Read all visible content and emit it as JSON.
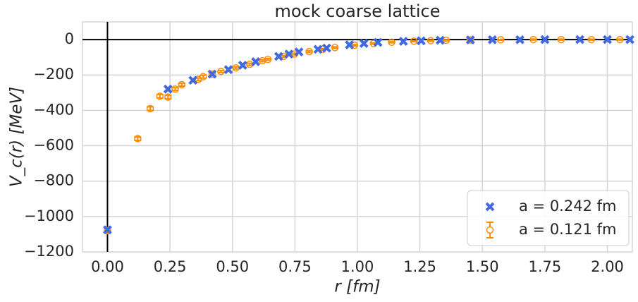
{
  "chart_data": {
    "type": "scatter",
    "title": "mock coarse lattice",
    "x_label": "r [fm]",
    "y_label": "V_c(r) [MeV]",
    "xlim": [
      -0.1,
      2.1
    ],
    "ylim": [
      -1200,
      100
    ],
    "xticks": [
      {
        "value": 0,
        "label": "0.00"
      },
      {
        "value": 0.25,
        "label": "0.25"
      },
      {
        "value": 0.5,
        "label": "0.50"
      },
      {
        "value": 0.75,
        "label": "0.75"
      },
      {
        "value": 1,
        "label": "1.00"
      },
      {
        "value": 1.25,
        "label": "1.25"
      },
      {
        "value": 1.5,
        "label": "1.50"
      },
      {
        "value": 1.75,
        "label": "1.75"
      },
      {
        "value": 2,
        "label": "2.00"
      }
    ],
    "yticks": [
      {
        "value": -1200,
        "label": "−1200"
      },
      {
        "value": -1000,
        "label": "−1000"
      },
      {
        "value": -800,
        "label": "−800"
      },
      {
        "value": -600,
        "label": "−600"
      },
      {
        "value": -400,
        "label": "−400"
      },
      {
        "value": -200,
        "label": "−200"
      },
      0
    ],
    "grid": true,
    "zero_lines": true,
    "legend": "lower right",
    "series": [
      {
        "name": "a = 0.242 fm",
        "color": "#4169e1",
        "marker": "x",
        "x": [
          0,
          0.242,
          0.342,
          0.419,
          0.484,
          0.541,
          0.593,
          0.685,
          0.726,
          0.766,
          0.842,
          0.877,
          0.968,
          1.026,
          1.082,
          1.184,
          1.255,
          1.331,
          1.452,
          1.54,
          1.65,
          1.75,
          1.89,
          2.0,
          2.09
        ],
        "values": [
          -1075,
          -280,
          -230,
          -195,
          -170,
          -145,
          -125,
          -95,
          -82,
          -70,
          -55,
          -48,
          -30,
          -22,
          -16,
          -10,
          -7,
          -4,
          -2,
          -1,
          -1,
          0,
          0,
          0,
          0
        ]
      },
      {
        "name": "a = 0.121 fm",
        "color": "#ff8c00",
        "marker": "o",
        "x": [
          0,
          0.121,
          0.171,
          0.21,
          0.242,
          0.271,
          0.297,
          0.363,
          0.383,
          0.419,
          0.454,
          0.514,
          0.569,
          0.62,
          0.642,
          0.705,
          0.748,
          0.807,
          0.861,
          0.91,
          0.988,
          1.064,
          1.137,
          1.226,
          1.293,
          1.355,
          1.452,
          1.573,
          1.704,
          1.815,
          1.936,
          2.05
        ],
        "values": [
          -1080,
          -560,
          -390,
          -320,
          -325,
          -280,
          -255,
          -225,
          -210,
          -195,
          -180,
          -160,
          -140,
          -120,
          -112,
          -95,
          -82,
          -68,
          -55,
          -45,
          -32,
          -22,
          -15,
          -9,
          -6,
          -4,
          -2,
          -1,
          0,
          0,
          0,
          0
        ],
        "errors": [
          12,
          10,
          10,
          10,
          10,
          8,
          8,
          8,
          8,
          6,
          6,
          6,
          6,
          5,
          5,
          5,
          5,
          5,
          4,
          4,
          4,
          3,
          3,
          3,
          3,
          3,
          3,
          3,
          3,
          3,
          3,
          3
        ]
      }
    ]
  }
}
